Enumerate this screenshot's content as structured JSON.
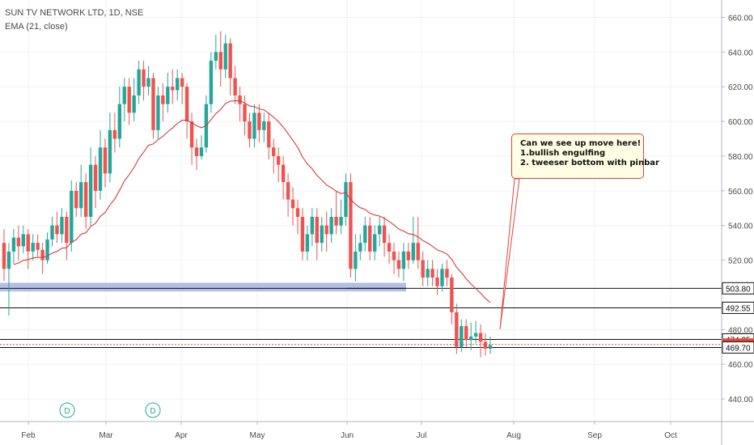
{
  "header": {
    "symbol_line": "SUN TV NETWORK LTD, 1D, NSE",
    "indicator_line": "EMA (21, close)"
  },
  "annotation": {
    "line1": "Can we see up move here!",
    "line2": "1.bullish engulfing",
    "line3": "2. tweeser bottom with pinbar"
  },
  "colors": {
    "up": "#26a69a",
    "down": "#ef5350",
    "ema": "#d23c3c",
    "zone": "#b3bfe2",
    "axis_text": "#4a4a4a",
    "current_price_bg": "#e0453a"
  },
  "chart_data": {
    "type": "candlestick",
    "y_axis_ticks": [
      "660.00",
      "640.00",
      "620.00",
      "600.00",
      "580.00",
      "560.00",
      "540.00",
      "520.00",
      "480.00",
      "460.00",
      "440.00"
    ],
    "x_axis_labels": [
      "Feb",
      "Mar",
      "Apr",
      "May",
      "Jun",
      "Jul",
      "Aug",
      "Sep",
      "Oct"
    ],
    "ylim": [
      427,
      670
    ],
    "price_labels": [
      {
        "value": 503.8,
        "text": "503.80",
        "style": "black"
      },
      {
        "value": 492.55,
        "text": "492.55",
        "style": "black"
      },
      {
        "value": 474.35,
        "text": "474.35",
        "style": "black"
      },
      {
        "value": 471.4,
        "text": "471.40",
        "style": "red"
      },
      {
        "value": 469.7,
        "text": "469.70",
        "style": "black"
      }
    ],
    "dividend_markers": [
      "D",
      "D"
    ],
    "candles": [
      [
        530,
        515,
        538,
        508
      ],
      [
        515,
        525,
        530,
        488
      ],
      [
        525,
        533,
        538,
        518
      ],
      [
        533,
        528,
        540,
        520
      ],
      [
        528,
        535,
        540,
        524
      ],
      [
        535,
        525,
        538,
        515
      ],
      [
        525,
        530,
        535,
        520
      ],
      [
        530,
        526,
        535,
        522
      ],
      [
        526,
        520,
        530,
        512
      ],
      [
        520,
        532,
        536,
        518
      ],
      [
        532,
        540,
        545,
        528
      ],
      [
        540,
        535,
        548,
        530
      ],
      [
        535,
        545,
        550,
        530
      ],
      [
        545,
        530,
        548,
        520
      ],
      [
        530,
        560,
        566,
        525
      ],
      [
        560,
        550,
        565,
        545
      ],
      [
        550,
        565,
        575,
        545
      ],
      [
        565,
        545,
        570,
        538
      ],
      [
        545,
        575,
        585,
        540
      ],
      [
        575,
        560,
        580,
        550
      ],
      [
        560,
        585,
        595,
        555
      ],
      [
        585,
        570,
        590,
        562
      ],
      [
        570,
        595,
        605,
        565
      ],
      [
        595,
        590,
        605,
        582
      ],
      [
        590,
        610,
        620,
        585
      ],
      [
        610,
        620,
        625,
        600
      ],
      [
        620,
        605,
        625,
        598
      ],
      [
        605,
        615,
        625,
        600
      ],
      [
        615,
        630,
        635,
        610
      ],
      [
        630,
        620,
        635,
        612
      ],
      [
        620,
        625,
        632,
        615
      ],
      [
        625,
        595,
        628,
        590
      ],
      [
        595,
        615,
        620,
        590
      ],
      [
        615,
        610,
        622,
        600
      ],
      [
        610,
        620,
        628,
        605
      ],
      [
        620,
        618,
        630,
        610
      ],
      [
        618,
        625,
        630,
        612
      ],
      [
        625,
        620,
        628,
        610
      ],
      [
        620,
        600,
        622,
        590
      ],
      [
        600,
        585,
        605,
        575
      ],
      [
        585,
        580,
        590,
        572
      ],
      [
        580,
        585,
        592,
        578
      ],
      [
        585,
        610,
        615,
        582
      ],
      [
        610,
        635,
        640,
        605
      ],
      [
        635,
        640,
        650,
        630
      ],
      [
        640,
        630,
        652,
        620
      ],
      [
        630,
        645,
        650,
        625
      ],
      [
        645,
        625,
        648,
        615
      ],
      [
        625,
        615,
        632,
        610
      ],
      [
        615,
        610,
        620,
        600
      ],
      [
        610,
        600,
        615,
        592
      ],
      [
        600,
        590,
        605,
        585
      ],
      [
        590,
        605,
        610,
        585
      ],
      [
        605,
        595,
        610,
        588
      ],
      [
        595,
        600,
        605,
        588
      ],
      [
        600,
        585,
        605,
        578
      ],
      [
        585,
        580,
        590,
        570
      ],
      [
        580,
        575,
        585,
        565
      ],
      [
        575,
        565,
        580,
        555
      ],
      [
        565,
        555,
        570,
        545
      ],
      [
        555,
        550,
        562,
        540
      ],
      [
        550,
        545,
        555,
        535
      ],
      [
        545,
        525,
        550,
        520
      ],
      [
        525,
        535,
        540,
        520
      ],
      [
        535,
        545,
        550,
        528
      ],
      [
        545,
        530,
        550,
        520
      ],
      [
        530,
        540,
        545,
        525
      ],
      [
        540,
        535,
        548,
        525
      ],
      [
        535,
        545,
        550,
        530
      ],
      [
        545,
        540,
        560,
        535
      ],
      [
        540,
        545,
        555,
        535
      ],
      [
        545,
        565,
        570,
        540
      ],
      [
        565,
        515,
        570,
        510
      ],
      [
        515,
        525,
        535,
        508
      ],
      [
        525,
        530,
        535,
        520
      ],
      [
        530,
        540,
        545,
        525
      ],
      [
        540,
        525,
        545,
        520
      ],
      [
        525,
        535,
        540,
        520
      ],
      [
        535,
        540,
        545,
        528
      ],
      [
        540,
        530,
        545,
        522
      ],
      [
        530,
        525,
        535,
        518
      ],
      [
        525,
        520,
        530,
        512
      ],
      [
        520,
        515,
        525,
        510
      ],
      [
        515,
        525,
        530,
        508
      ],
      [
        525,
        520,
        530,
        515
      ],
      [
        520,
        530,
        545,
        518
      ],
      [
        530,
        520,
        545,
        515
      ],
      [
        520,
        510,
        525,
        505
      ],
      [
        510,
        515,
        520,
        505
      ],
      [
        515,
        510,
        520,
        505
      ],
      [
        510,
        505,
        515,
        500
      ],
      [
        505,
        515,
        518,
        502
      ],
      [
        515,
        510,
        520,
        505
      ],
      [
        510,
        490,
        512,
        483
      ],
      [
        490,
        470,
        495,
        466
      ],
      [
        470,
        482,
        486,
        467
      ],
      [
        482,
        474,
        486,
        470
      ],
      [
        474,
        476,
        484,
        468
      ],
      [
        476,
        478,
        485,
        472
      ],
      [
        478,
        473,
        483,
        464
      ],
      [
        473,
        469,
        478,
        465
      ],
      [
        469,
        471,
        476,
        466
      ]
    ]
  }
}
